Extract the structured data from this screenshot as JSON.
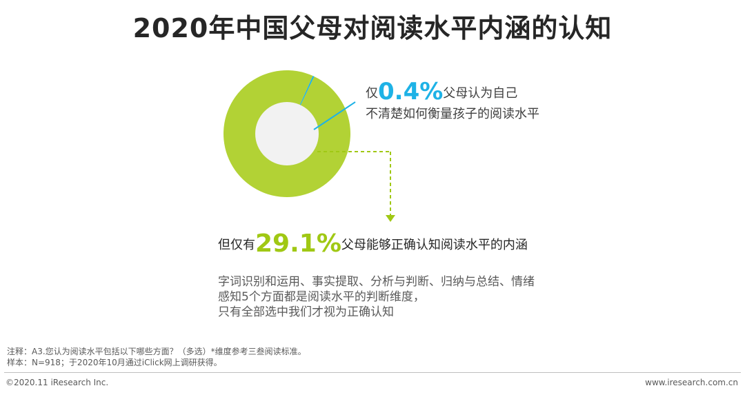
{
  "title": "2020年中国父母对阅读水平内涵的认知",
  "callout_top": {
    "prefix": "仅",
    "value": "0.4%",
    "suffix": "父母认为自己",
    "line2": "不清楚如何衡量孩子的阅读水平"
  },
  "callout_bottom": {
    "prefix": "但仅有",
    "value": "29.1%",
    "suffix": "父母能够正确认知阅读水平的内涵"
  },
  "description": [
    "字词识别和运用、事实提取、分析与判断、归纳与总结、情绪",
    "感知5个方面都是阅读水平的判断维度，",
    "只有全部选中我们才视为正确认知"
  ],
  "notes": {
    "note": "注释：A3.您认为阅读水平包括以下哪些方面？（多选）*维度参考三叁阅读标准。",
    "sample": "样本：N=918；于2020年10月通过iClick网上调研获得。"
  },
  "footer": {
    "copyright": "©2020.11 iResearch Inc.",
    "website": "www.iresearch.com.cn"
  },
  "colors": {
    "ring": "#b2d235",
    "ring_highlight": "#1eb2e6",
    "inner": "#f2f2f2",
    "arrow": "#a0c814"
  },
  "chart_data": {
    "type": "pie",
    "title": "",
    "slices": [
      {
        "label": "不清楚如何衡量孩子的阅读水平",
        "value": 0.4
      },
      {
        "label": "",
        "value": 99.6
      }
    ]
  }
}
